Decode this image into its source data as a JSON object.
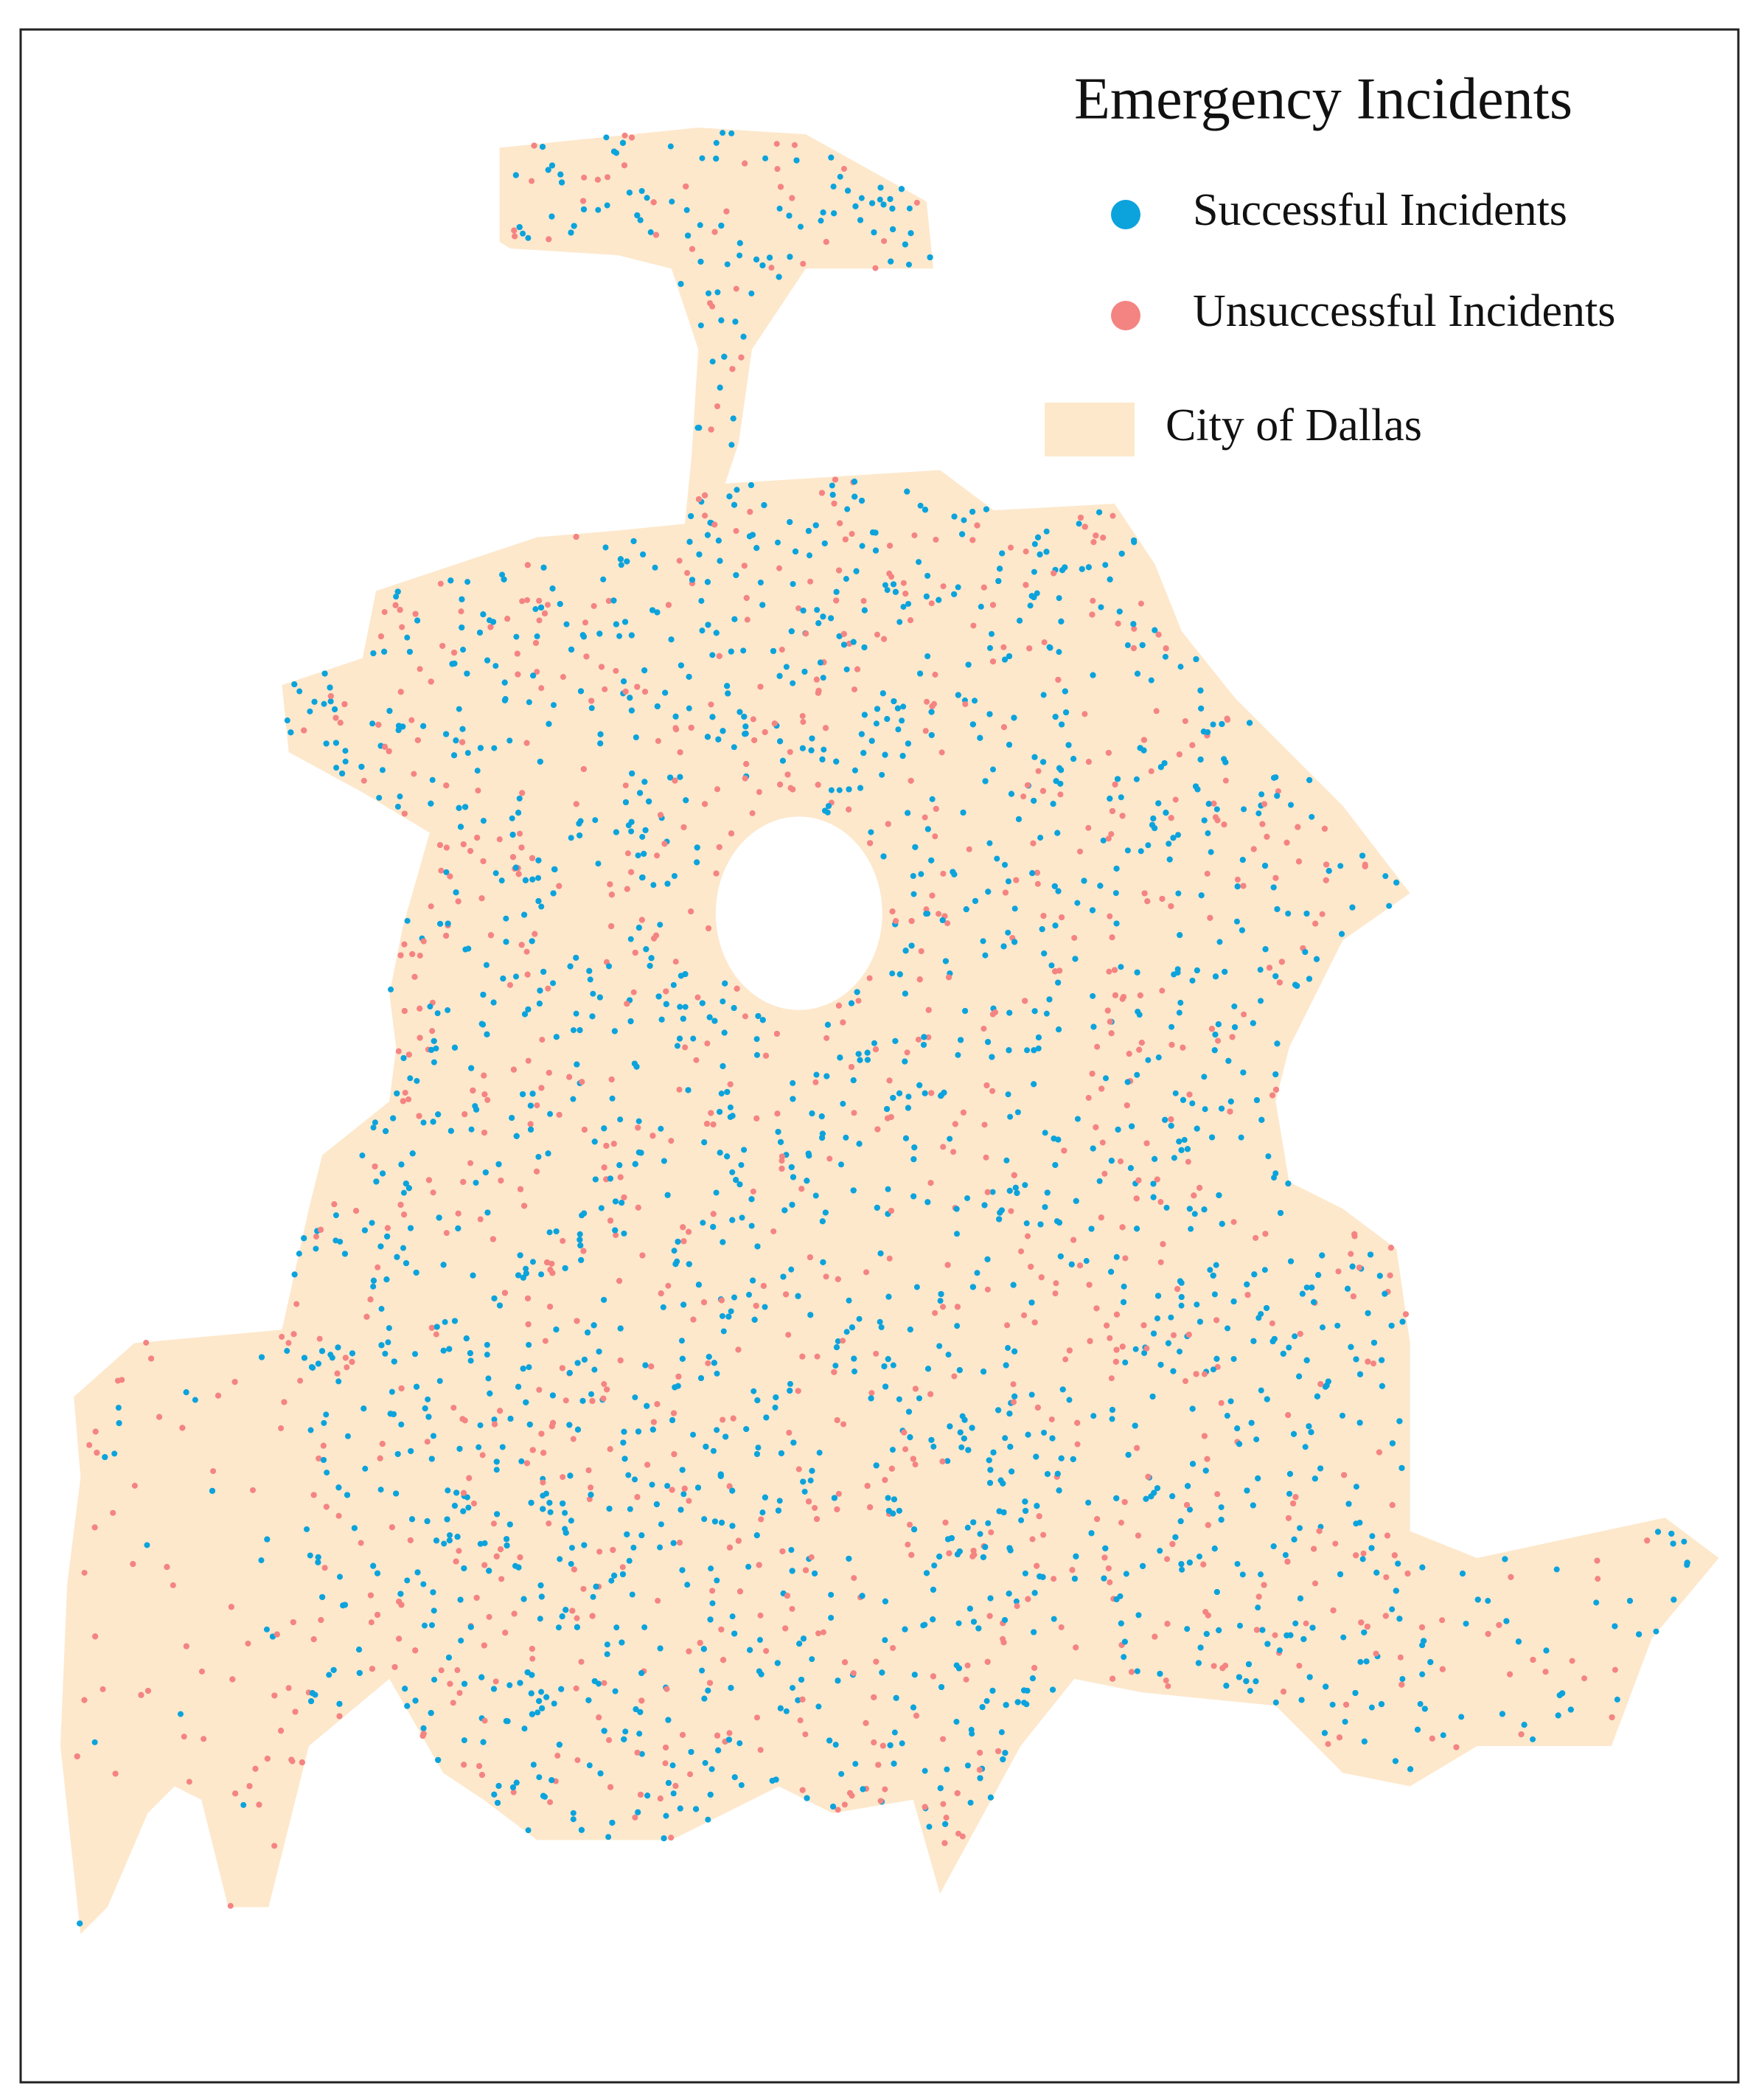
{
  "legend": {
    "title": "Emergency Incidents",
    "items": [
      {
        "label": "Successful Incidents",
        "color": "#0ca3dc"
      },
      {
        "label": "Unsuccessful Incidents",
        "color": "#f48482"
      },
      {
        "label": "City of Dallas",
        "color": "#fde8cc"
      }
    ]
  }
}
